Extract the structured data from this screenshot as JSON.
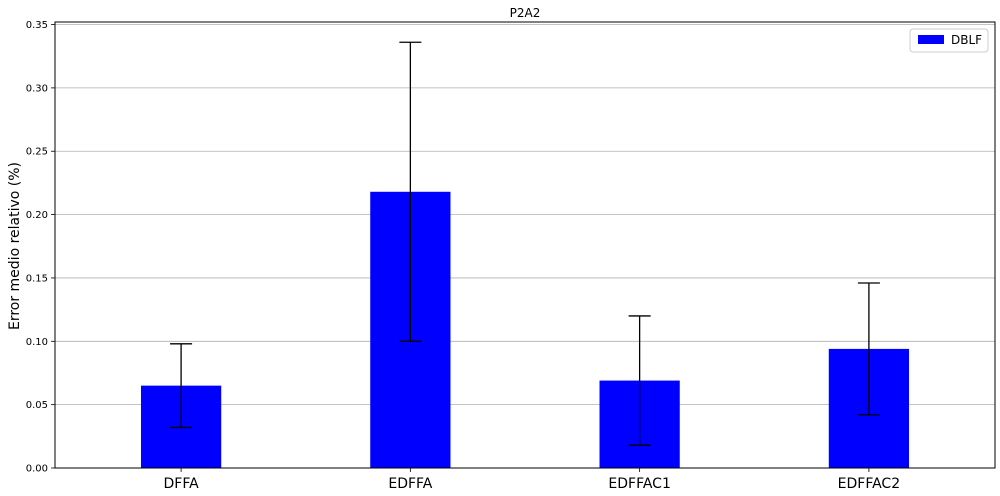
{
  "chart_data": {
    "type": "bar",
    "title": "P2A2",
    "xlabel": "",
    "ylabel": "Error medio relativo (%)",
    "categories": [
      "DFFA",
      "EDFFA",
      "EDFFAC1",
      "EDFFAC2"
    ],
    "series": [
      {
        "name": "DBLF",
        "values": [
          0.065,
          0.218,
          0.069,
          0.094
        ],
        "errors": [
          0.033,
          0.118,
          0.051,
          0.052
        ],
        "color": "#0000ff"
      }
    ],
    "ylim": [
      0,
      0.352
    ],
    "yticks": [
      "0.00",
      "0.05",
      "0.10",
      "0.15",
      "0.20",
      "0.25",
      "0.30",
      "0.35"
    ],
    "grid": "y",
    "legend_position": "top-right"
  }
}
